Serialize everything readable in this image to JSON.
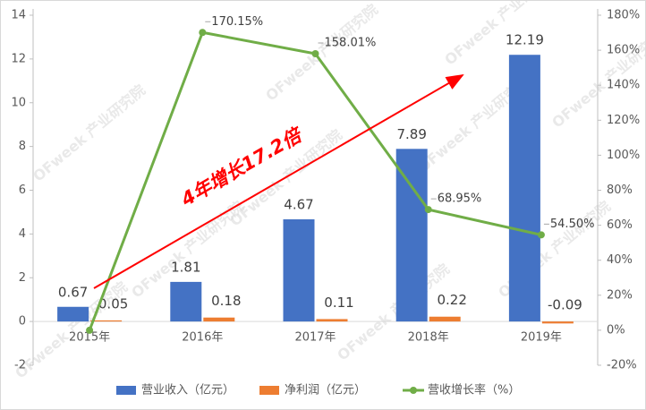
{
  "chart_data": {
    "type": "bar-line",
    "annotation": "4年增长17.2倍",
    "watermark": "OFweek 产业研究院",
    "categories": [
      "2015年",
      "2016年",
      "2017年",
      "2018年",
      "2019年"
    ],
    "series": [
      {
        "name": "营业收入（亿元）",
        "color": "#4472c4",
        "type": "bar",
        "values": [
          0.67,
          1.81,
          4.67,
          7.89,
          12.19
        ]
      },
      {
        "name": "净利润（亿元）",
        "color": "#ed7d31",
        "type": "bar",
        "values": [
          0.05,
          0.18,
          0.11,
          0.22,
          -0.09
        ]
      },
      {
        "name": "营收增长率（%）",
        "color": "#70ad47",
        "type": "line",
        "axis": "y2",
        "values": [
          0,
          170.15,
          158.01,
          68.95,
          54.5
        ],
        "value_labels": [
          null,
          "170.15%",
          "158.01%",
          "68.95%",
          "54.50%"
        ]
      }
    ],
    "ylim": [
      -2,
      14
    ],
    "yticks": [
      -2,
      0,
      2,
      4,
      6,
      8,
      10,
      12,
      14
    ],
    "y2lim": [
      -20,
      180
    ],
    "y2ticks": [
      {
        "value": -20,
        "label": "-20%"
      },
      {
        "value": 0,
        "label": "0%"
      },
      {
        "value": 20,
        "label": "20%"
      },
      {
        "value": 40,
        "label": "40%"
      },
      {
        "value": 60,
        "label": "60%"
      },
      {
        "value": 80,
        "label": "80%"
      },
      {
        "value": 100,
        "label": "100%"
      },
      {
        "value": 120,
        "label": "120%"
      },
      {
        "value": 140,
        "label": "140%"
      },
      {
        "value": 160,
        "label": "160%"
      },
      {
        "value": 180,
        "label": "180%"
      }
    ]
  }
}
